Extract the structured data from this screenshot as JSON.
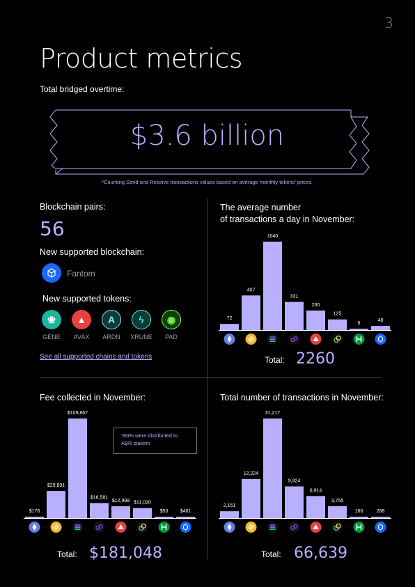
{
  "page_number": "3",
  "title": "Product metrics",
  "subtitle": "Total bridged overtime:",
  "total_bridged": "$3.6 billion",
  "footnote": "*Counting Send and Receive transactions values based on average monthly tokens' prices.",
  "pairs": {
    "label": "Blockchain pairs:",
    "value": "56"
  },
  "new_chain": {
    "label": "New supported blockchain:",
    "name": "Fantom"
  },
  "new_tokens": {
    "label": "New supported tokens:",
    "items": [
      {
        "name": "GENE",
        "icon": "gene-icon",
        "color": "#1fb59b"
      },
      {
        "name": "AVAX",
        "icon": "avax-icon",
        "color": "#e84142"
      },
      {
        "name": "ARDN",
        "icon": "ardn-icon",
        "color": "#0e3a3a"
      },
      {
        "name": "XRUNE",
        "icon": "xrune-icon",
        "color": "#0d3b3b"
      },
      {
        "name": "PAD",
        "icon": "pad-icon",
        "color": "#123d12"
      }
    ]
  },
  "see_all_link": "See all supported chains and tokens",
  "fee_note": "*80% were distributed to ABR stakers",
  "total_label": "Total:",
  "chain_icons": [
    {
      "name": "ethereum-icon",
      "color": "#627eea"
    },
    {
      "name": "bnb-icon",
      "color": "#f3ba2f"
    },
    {
      "name": "solana-icon",
      "color": "#111111"
    },
    {
      "name": "polygon-icon",
      "color": "#111111"
    },
    {
      "name": "avalanche-icon",
      "color": "#e84142"
    },
    {
      "name": "celo-icon",
      "color": "#111111"
    },
    {
      "name": "heco-icon",
      "color": "#01943f"
    },
    {
      "name": "fantom-icon",
      "color": "#1969ff"
    }
  ],
  "chart_data": [
    {
      "type": "bar",
      "title": "The average number\nof transactions a day in November:",
      "title_lines": [
        "The average number",
        "of transactions a day in November:"
      ],
      "values": [
        72,
        407,
        1040,
        331,
        230,
        125,
        6,
        48
      ],
      "value_labels": [
        "72",
        "407",
        "1040",
        "331",
        "230",
        "125",
        "6",
        "48"
      ],
      "total": "2260",
      "bar_color": "#b8b0ff"
    },
    {
      "type": "bar",
      "title": "Fee collected in November:",
      "values": [
        176,
        29891,
        109867,
        16581,
        12999,
        11020,
        50,
        461
      ],
      "value_labels": [
        "$176",
        "$29,891",
        "$109,867",
        "$16,581",
        "$12,999",
        "$11,020",
        "$50",
        "$461"
      ],
      "total": "$181,048",
      "bar_color": "#b8b0ff"
    },
    {
      "type": "bar",
      "title": "Total number of transactions in November:",
      "values": [
        2151,
        12224,
        31217,
        9924,
        6914,
        3755,
        166,
        288
      ],
      "value_labels": [
        "2,151",
        "12,224",
        "31,217",
        "9,924",
        "6,914",
        "3,755",
        "166",
        "288"
      ],
      "total": "66,639",
      "bar_color": "#b8b0ff"
    }
  ]
}
